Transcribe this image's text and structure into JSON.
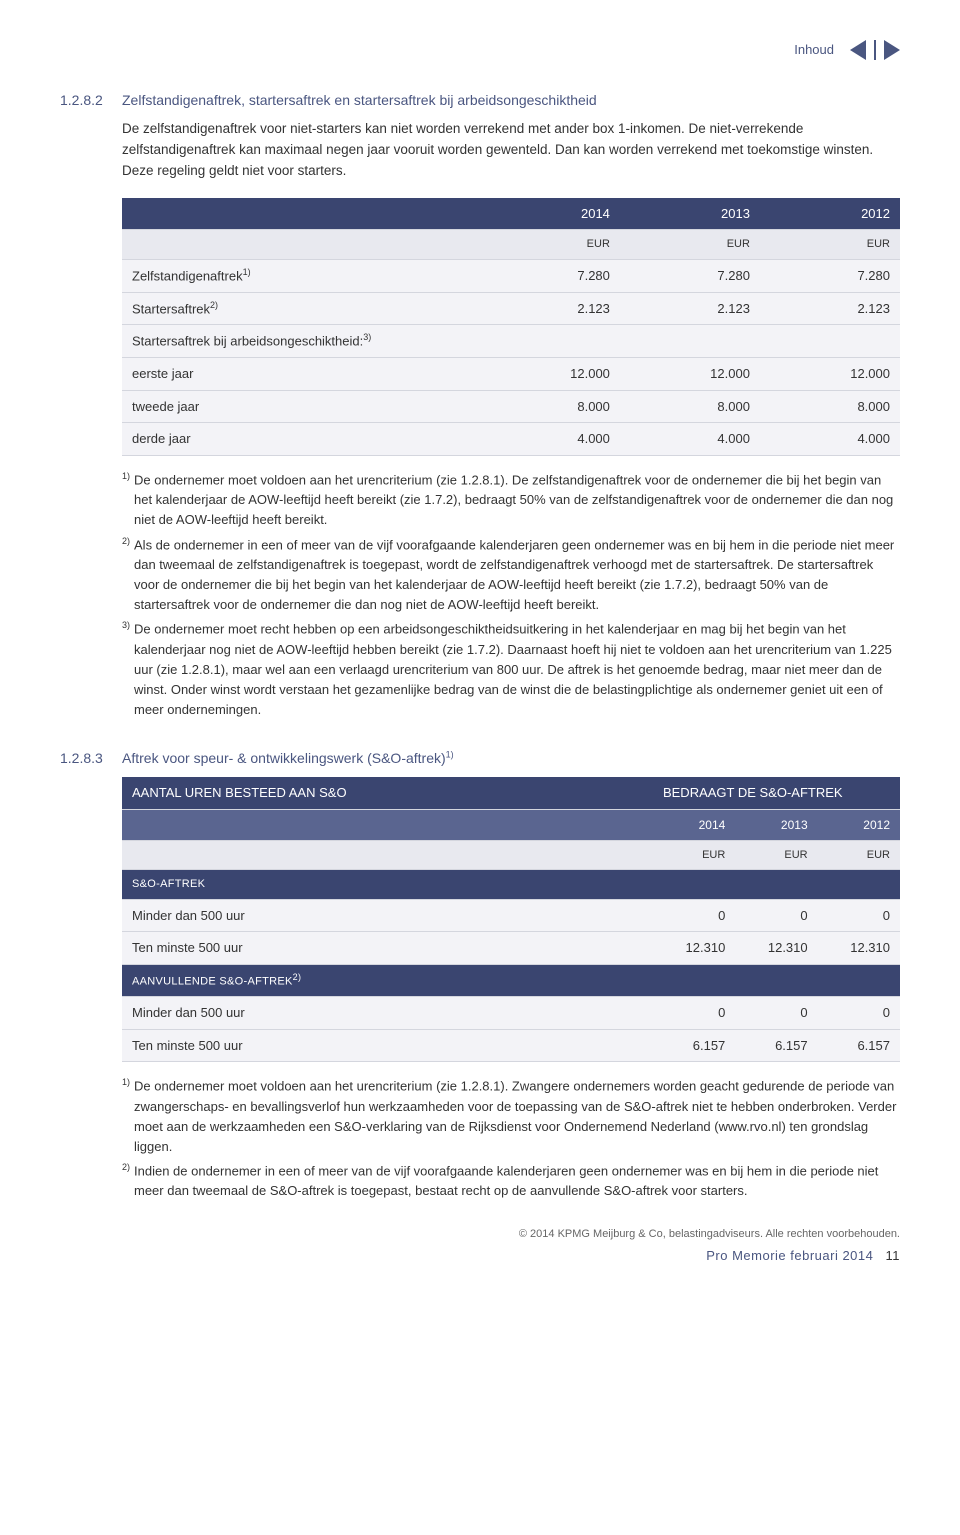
{
  "header": {
    "inhoud": "Inhoud"
  },
  "section1": {
    "num": "1.2.8.2",
    "title": "Zelfstandigenaftrek, startersaftrek en startersaftrek bij arbeidsongeschiktheid",
    "para1": "De zelfstandigenaftrek voor niet-starters kan niet worden verrekend met ander box 1-inkomen. De niet-verrekende zelfstandigenaftrek kan maximaal negen jaar vooruit worden gewenteld. Dan kan worden verrekend met toekomstige winsten. Deze regeling geldt niet voor starters."
  },
  "table1": {
    "years": [
      "2014",
      "2013",
      "2012"
    ],
    "unit": "EUR",
    "rows": [
      {
        "label": "Zelfstandigenaftrek",
        "sup": "1)",
        "v": [
          "7.280",
          "7.280",
          "7.280"
        ]
      },
      {
        "label": "Startersaftrek",
        "sup": "2)",
        "v": [
          "2.123",
          "2.123",
          "2.123"
        ]
      },
      {
        "label": "Startersaftrek bij arbeidsongeschiktheid:",
        "sup": "3)",
        "v": [
          "",
          "",
          ""
        ]
      },
      {
        "label": "eerste jaar",
        "sup": "",
        "v": [
          "12.000",
          "12.000",
          "12.000"
        ]
      },
      {
        "label": "tweede jaar",
        "sup": "",
        "v": [
          "8.000",
          "8.000",
          "8.000"
        ]
      },
      {
        "label": "derde jaar",
        "sup": "",
        "v": [
          "4.000",
          "4.000",
          "4.000"
        ]
      }
    ]
  },
  "footnotes1": {
    "n1": "De ondernemer moet voldoen aan het urencriterium (zie 1.2.8.1). De zelfstandigenaftrek voor de ondernemer die bij het begin van het kalenderjaar de AOW-leeftijd heeft bereikt (zie 1.7.2), bedraagt 50% van de zelfstandigenaftrek voor de ondernemer die dan nog niet de AOW-leeftijd heeft bereikt.",
    "n2": "Als de ondernemer in een of meer van de vijf voorafgaande kalenderjaren geen ondernemer was en bij hem in die periode niet meer dan tweemaal de zelfstandigenaftrek is toegepast, wordt de zelfstandigenaftrek verhoogd met de startersaftrek. De startersaftrek voor de ondernemer die bij het begin van het kalenderjaar de AOW-leeftijd heeft bereikt (zie 1.7.2), bedraagt 50% van de startersaftrek voor de ondernemer die dan nog niet de AOW-leeftijd heeft bereikt.",
    "n3": "De ondernemer moet recht hebben op een arbeidsongeschiktheidsuitkering in het kalenderjaar en mag bij het begin van het kalenderjaar nog niet de AOW-leeftijd hebben bereikt (zie 1.7.2). Daarnaast hoeft hij niet te voldoen aan het urencriterium van 1.225 uur (zie 1.2.8.1), maar wel aan een verlaagd urencriterium van 800 uur. De aftrek is het genoemde bedrag, maar niet meer dan de winst. Onder winst wordt verstaan het gezamenlijke bedrag van de winst die de belastingplichtige als ondernemer geniet uit een of meer ondernemingen."
  },
  "section2": {
    "num": "1.2.8.3",
    "title_pre": "Aftrek voor speur- & ontwikkelingswerk (S&O-aftrek)",
    "title_sup": "1)"
  },
  "table2": {
    "hdr_left": "AANTAL UREN BESTEED AAN S&O",
    "hdr_right": "BEDRAAGT DE S&O-AFTREK",
    "years": [
      "2014",
      "2013",
      "2012"
    ],
    "unit": "EUR",
    "group1_label": "S&O-AFTREK",
    "group1_rows": [
      {
        "label": "Minder dan 500 uur",
        "v": [
          "0",
          "0",
          "0"
        ]
      },
      {
        "label": "Ten minste 500 uur",
        "v": [
          "12.310",
          "12.310",
          "12.310"
        ]
      }
    ],
    "group2_label": "AANVULLENDE S&O-AFTREK",
    "group2_sup": "2)",
    "group2_rows": [
      {
        "label": "Minder dan 500 uur",
        "v": [
          "0",
          "0",
          "0"
        ]
      },
      {
        "label": "Ten minste 500 uur",
        "v": [
          "6.157",
          "6.157",
          "6.157"
        ]
      }
    ]
  },
  "footnotes2": {
    "n1": "De ondernemer moet voldoen aan het urencriterium (zie 1.2.8.1). Zwangere ondernemers worden geacht gedurende de periode van zwangerschaps- en bevallingsverlof hun werkzaamheden voor de toepassing van de S&O-aftrek niet te hebben onderbroken. Verder moet aan de werkzaamheden een S&O-verklaring van de Rijksdienst voor Ondernemend Nederland (www.rvo.nl) ten grondslag liggen.",
    "n2": "Indien de ondernemer in een of meer van de vijf voorafgaande kalenderjaren geen ondernemer was en bij hem in die periode niet meer dan tweemaal de S&O-aftrek is toegepast, bestaat recht op de aanvullende S&O-aftrek voor starters."
  },
  "footer": {
    "copyright": "© 2014 KPMG Meijburg & Co, belastingadviseurs. Alle rechten voorbehouden.",
    "doc": "Pro Memorie februari 2014",
    "page": "11"
  },
  "colors": {
    "brand_dark": "#3a4570",
    "brand_mid": "#5a6590",
    "row_bg": "#f3f3f7",
    "border": "#d4d6de",
    "text": "#333333"
  }
}
